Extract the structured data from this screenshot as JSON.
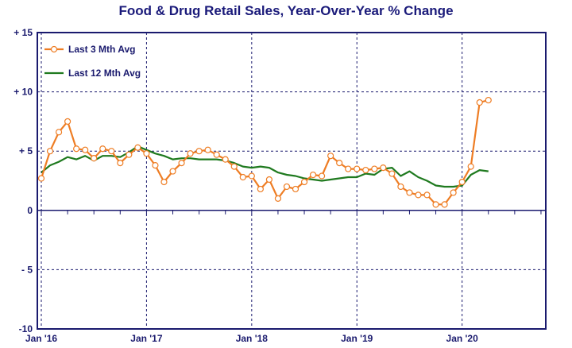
{
  "chart_data": {
    "type": "line",
    "title": "Food & Drug Retail Sales, Year-Over-Year % Change",
    "ylim": [
      -10,
      15
    ],
    "y_ticks": [
      15,
      10,
      5,
      0,
      -5,
      -10
    ],
    "y_tick_labels": [
      "+ 15",
      "+ 10",
      "+ 5",
      "0",
      "- 5",
      "-10"
    ],
    "x_tick_labels": [
      "Jan '16",
      "Jan '17",
      "Jan '18",
      "Jan '19",
      "Jan '20"
    ],
    "x_tick_months": [
      0,
      12,
      24,
      36,
      48
    ],
    "x_months_total": 58,
    "grid": true,
    "legend_position": "top-left",
    "colors": {
      "three_month": "#ee7d24",
      "twelve_month": "#1f7a1f",
      "axis": "#1a1a6e",
      "title": "#1a1a7a"
    },
    "series": [
      {
        "name": "Last 3 Mth Avg",
        "markers": true,
        "x": [
          0,
          1,
          2,
          3,
          4,
          5,
          6,
          7,
          8,
          9,
          10,
          11,
          12,
          13,
          14,
          15,
          16,
          17,
          18,
          19,
          20,
          21,
          22,
          23,
          24,
          25,
          26,
          27,
          28,
          29,
          30,
          31,
          32,
          33,
          34,
          35,
          36,
          37,
          38,
          39,
          40,
          41,
          42,
          43,
          44,
          45,
          46,
          47,
          48,
          49,
          50,
          51
        ],
        "values": [
          2.7,
          5.0,
          6.6,
          7.5,
          5.2,
          5.1,
          4.4,
          5.2,
          5.0,
          4.0,
          4.7,
          5.3,
          4.8,
          3.8,
          2.4,
          3.3,
          4.0,
          4.8,
          5.0,
          5.1,
          4.7,
          4.3,
          3.7,
          2.8,
          2.9,
          1.8,
          2.6,
          1.0,
          2.0,
          1.8,
          2.4,
          3.0,
          2.9,
          4.6,
          4.0,
          3.5,
          3.5,
          3.4,
          3.5,
          3.6,
          3.1,
          2.0,
          1.5,
          1.3,
          1.3,
          0.5,
          0.5,
          1.5,
          2.4,
          3.7,
          9.1,
          9.3
        ]
      },
      {
        "name": "Last 12 Mth Avg",
        "markers": false,
        "x": [
          0,
          1,
          2,
          3,
          4,
          5,
          6,
          7,
          8,
          9,
          10,
          11,
          12,
          13,
          14,
          15,
          16,
          17,
          18,
          19,
          20,
          21,
          22,
          23,
          24,
          25,
          26,
          27,
          28,
          29,
          30,
          31,
          32,
          33,
          34,
          35,
          36,
          37,
          38,
          39,
          40,
          41,
          42,
          43,
          44,
          45,
          46,
          47,
          48,
          49,
          50,
          51
        ],
        "values": [
          3.2,
          3.8,
          4.1,
          4.5,
          4.3,
          4.6,
          4.2,
          4.6,
          4.6,
          4.5,
          4.9,
          5.4,
          5.1,
          4.8,
          4.6,
          4.3,
          4.4,
          4.4,
          4.3,
          4.3,
          4.3,
          4.2,
          4.0,
          3.7,
          3.6,
          3.7,
          3.6,
          3.2,
          3.0,
          2.9,
          2.7,
          2.6,
          2.5,
          2.6,
          2.7,
          2.8,
          2.8,
          3.1,
          3.0,
          3.5,
          3.6,
          2.9,
          3.3,
          2.8,
          2.5,
          2.1,
          2.0,
          2.0,
          2.1,
          3.0,
          3.4,
          3.3
        ]
      }
    ]
  }
}
